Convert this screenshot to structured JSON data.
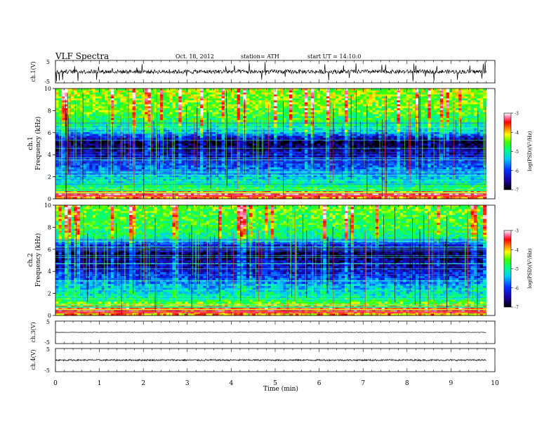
{
  "header": {
    "title": "VLF Spectra",
    "date": "Oct. 18, 2012",
    "station": "station= ATH",
    "start": "start UT = 14:10:0"
  },
  "chart_data": [
    {
      "type": "line",
      "panel": "ch1-waveform",
      "ylabel": "ch.1(V)",
      "xlim": [
        0,
        10
      ],
      "ylim": [
        -5,
        5
      ],
      "yticks": [
        "5",
        "-5"
      ],
      "baseline": 0,
      "x_end": 9.8,
      "amplitude": 0.9
    },
    {
      "type": "heatmap",
      "panel": "ch1-spectrogram",
      "ylabel": "ch.1",
      "ylabel2": "Frequency (kHz)",
      "xlim": [
        0,
        10
      ],
      "ylim": [
        0,
        10
      ],
      "yticks": [
        "0",
        "2",
        "4",
        "6",
        "8",
        "10"
      ],
      "x_end": 9.8,
      "colorbar": {
        "label": "log(PSD)(V²/Hz)",
        "range": [
          -7,
          -3
        ],
        "ticks": [
          "-3",
          "-4",
          "-5",
          "-6",
          "-7"
        ]
      },
      "band_profile_log_psd": [
        {
          "f": 0.2,
          "v": -3.6
        },
        {
          "f": 0.5,
          "v": -3.2
        },
        {
          "f": 0.8,
          "v": -4.6
        },
        {
          "f": 1.5,
          "v": -5.2
        },
        {
          "f": 2.5,
          "v": -5.6
        },
        {
          "f": 3.5,
          "v": -6.2
        },
        {
          "f": 4.5,
          "v": -6.6
        },
        {
          "f": 5.2,
          "v": -6.8
        },
        {
          "f": 6.0,
          "v": -5.5
        },
        {
          "f": 7.0,
          "v": -4.8
        },
        {
          "f": 8.0,
          "v": -4.5
        },
        {
          "f": 9.0,
          "v": -4.4
        },
        {
          "f": 10.0,
          "v": -4.3
        }
      ]
    },
    {
      "type": "heatmap",
      "panel": "ch2-spectrogram",
      "ylabel": "ch.2",
      "ylabel2": "Frequency (kHz)",
      "xlim": [
        0,
        10
      ],
      "ylim": [
        0,
        10
      ],
      "yticks": [
        "0",
        "2",
        "4",
        "6",
        "8",
        "10"
      ],
      "x_end": 9.8,
      "colorbar": {
        "label": "log(PSD)(V²/Hz)",
        "range": [
          -7,
          -3
        ],
        "ticks": [
          "-3",
          "-4",
          "-5",
          "-6",
          "-7"
        ]
      },
      "band_profile_log_psd": [
        {
          "f": 0.2,
          "v": -3.8
        },
        {
          "f": 0.6,
          "v": -3.4
        },
        {
          "f": 1.0,
          "v": -4.3
        },
        {
          "f": 1.5,
          "v": -5.0
        },
        {
          "f": 2.5,
          "v": -5.4
        },
        {
          "f": 3.5,
          "v": -6.0
        },
        {
          "f": 4.5,
          "v": -6.4
        },
        {
          "f": 5.5,
          "v": -6.7
        },
        {
          "f": 6.2,
          "v": -6.5
        },
        {
          "f": 7.0,
          "v": -5.0
        },
        {
          "f": 8.0,
          "v": -4.7
        },
        {
          "f": 9.0,
          "v": -4.6
        },
        {
          "f": 10.0,
          "v": -4.5
        }
      ]
    },
    {
      "type": "line",
      "panel": "ch3-waveform",
      "ylabel": "ch.3(V)",
      "xlim": [
        0,
        10
      ],
      "ylim": [
        -5,
        5
      ],
      "yticks": [
        "5",
        "-5"
      ],
      "baseline": 0,
      "x_end": 9.8,
      "amplitude": 0.08
    },
    {
      "type": "line",
      "panel": "ch4-waveform",
      "ylabel": "ch.4(V)",
      "xlim": [
        0,
        10
      ],
      "ylim": [
        -5,
        5
      ],
      "yticks": [
        "5",
        "-5"
      ],
      "baseline": 0,
      "x_end": 9.8,
      "amplitude": 0.3
    }
  ],
  "xaxis": {
    "label": "Time (min)",
    "ticks": [
      "0",
      "1",
      "2",
      "3",
      "4",
      "5",
      "6",
      "7",
      "8",
      "9",
      "10"
    ]
  }
}
